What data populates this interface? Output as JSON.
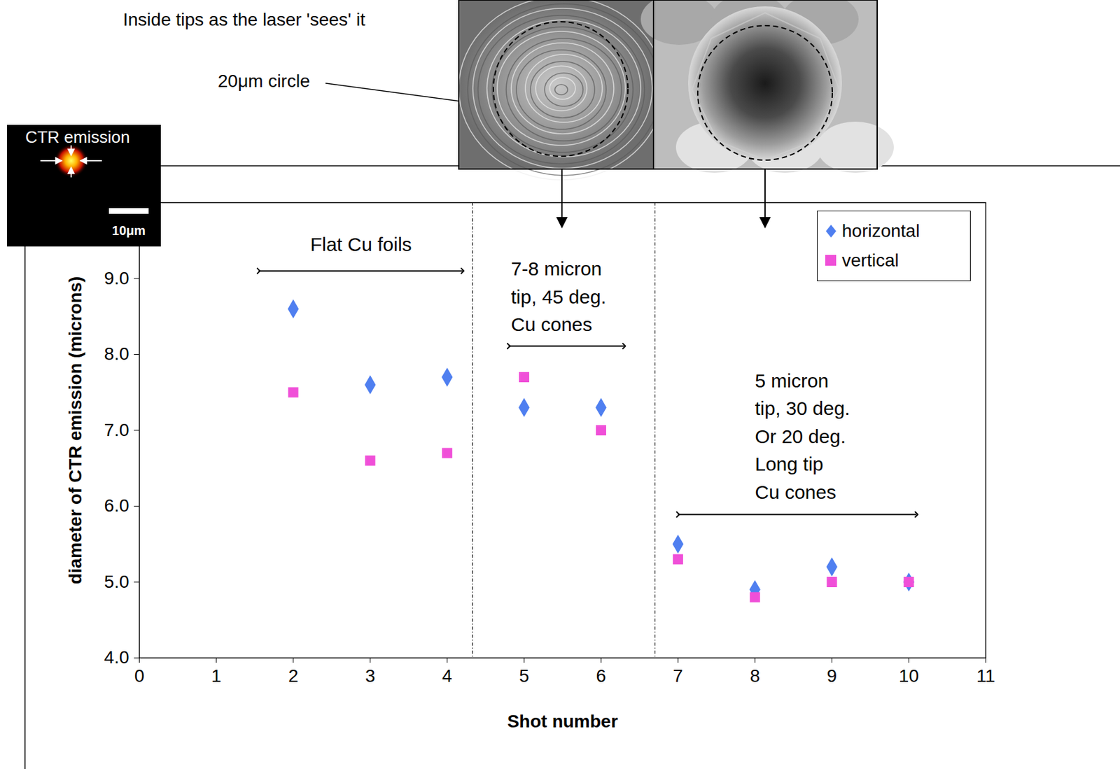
{
  "chart_data": {
    "type": "scatter",
    "xlabel": "Shot number",
    "ylabel": "diameter of CTR emission (microns)",
    "xlim": [
      0,
      11
    ],
    "xticks": [
      0,
      1,
      2,
      3,
      4,
      5,
      6,
      7,
      8,
      9,
      10,
      11
    ],
    "ylim": [
      4,
      10
    ],
    "yticks": [
      4,
      5,
      6,
      7,
      8,
      9
    ],
    "legend": "top-right",
    "x": [
      2,
      3,
      4,
      5,
      6,
      7,
      8,
      9,
      10
    ],
    "series": [
      {
        "name": "horizontal",
        "color": "#4f7ff0",
        "marker": "diamond",
        "values": [
          8.6,
          7.6,
          7.7,
          7.3,
          7.3,
          5.5,
          4.9,
          5.2,
          5.0
        ]
      },
      {
        "name": "vertical",
        "color": "#f04fd8",
        "marker": "square",
        "values": [
          7.5,
          6.6,
          6.7,
          7.7,
          7.0,
          5.3,
          4.8,
          5.0,
          5.0
        ]
      }
    ],
    "separators": [
      4.33,
      6.7
    ],
    "annotations": [
      {
        "lines": [
          "Flat Cu foils"
        ],
        "x": 2.88,
        "y": 9.44,
        "span": [
          1.55,
          4.2
        ],
        "arrow_y": 9.1
      },
      {
        "lines": [
          "7-8 micron",
          "tip, 45 deg.",
          "Cu cones"
        ],
        "x": 4.83,
        "y": 8.79,
        "span": [
          4.8,
          6.3
        ],
        "arrow_y": 8.11
      },
      {
        "lines": [
          "5 micron",
          "tip, 30 deg.",
          "Or 20 deg.",
          "Long tip",
          "Cu cones"
        ],
        "x": 8.0,
        "y": 6.95,
        "span": [
          7.0,
          10.1
        ],
        "arrow_y": 5.89
      }
    ]
  },
  "insets": {
    "title": "Inside tips as the laser 'sees' it",
    "circle_label": "20μm circle",
    "ctr_label": "CTR emission",
    "scale_label": "10μm"
  }
}
